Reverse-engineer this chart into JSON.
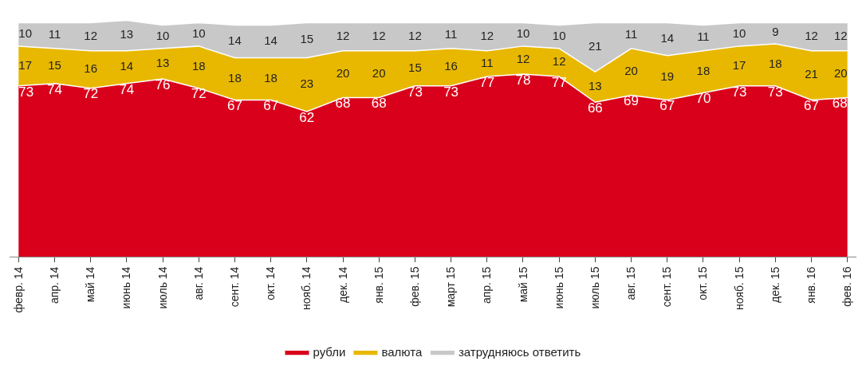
{
  "chart_data": {
    "type": "area",
    "stacked": true,
    "data_labels": true,
    "legend": "bottom",
    "categories": [
      "февр. 14",
      "апр. 14",
      "май 14",
      "июнь 14",
      "июль 14",
      "авг. 14",
      "сент. 14",
      "окт. 14",
      "нояб. 14",
      "дек. 14",
      "янв. 15",
      "фев. 15",
      "март 15",
      "апр. 15",
      "май 15",
      "июнь 15",
      "июль 15",
      "авг. 15",
      "сент. 15",
      "окт. 15",
      "нояб. 15",
      "дек. 15",
      "янв. 16",
      "фев. 16"
    ],
    "series": [
      {
        "name": "рубли",
        "color": "#d9001b",
        "values": [
          73,
          74,
          72,
          74,
          76,
          72,
          67,
          67,
          62,
          68,
          68,
          73,
          73,
          77,
          78,
          77,
          66,
          69,
          67,
          70,
          73,
          73,
          67,
          68
        ]
      },
      {
        "name": "валюта",
        "color": "#e8b800",
        "values": [
          17,
          15,
          16,
          14,
          13,
          18,
          18,
          18,
          23,
          20,
          20,
          15,
          16,
          11,
          12,
          12,
          13,
          20,
          19,
          18,
          17,
          18,
          21,
          20
        ]
      },
      {
        "name": "затрудняюсь ответить",
        "color": "#c8c8c8",
        "values": [
          10,
          11,
          12,
          13,
          10,
          10,
          14,
          14,
          15,
          12,
          12,
          12,
          11,
          12,
          10,
          10,
          21,
          11,
          14,
          11,
          10,
          9,
          12,
          12
        ]
      }
    ]
  }
}
